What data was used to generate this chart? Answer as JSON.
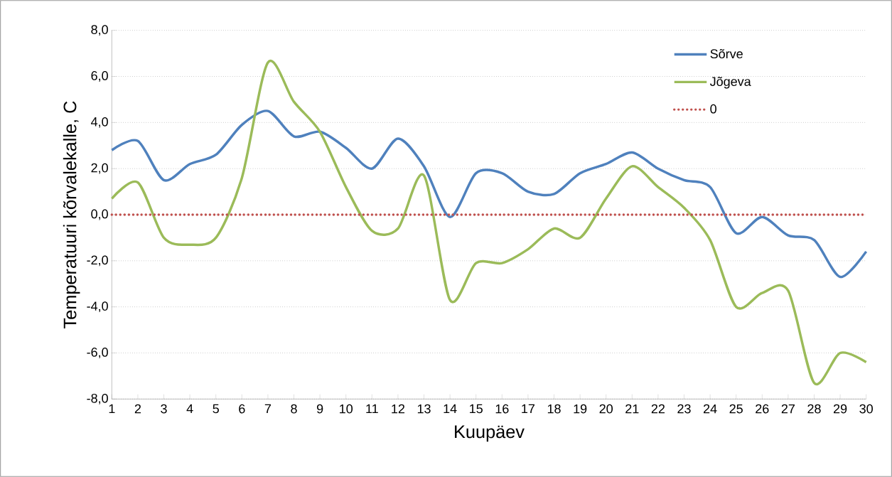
{
  "chart_data": {
    "type": "line",
    "xlabel": "Kuupäev",
    "ylabel": "Temperatuuri  kõrvalekalle, C",
    "categories": [
      "1",
      "2",
      "3",
      "4",
      "5",
      "6",
      "7",
      "8",
      "9",
      "10",
      "11",
      "12",
      "13",
      "14",
      "15",
      "16",
      "17",
      "18",
      "19",
      "20",
      "21",
      "22",
      "23",
      "24",
      "25",
      "26",
      "27",
      "28",
      "29",
      "30"
    ],
    "series": [
      {
        "name": "Sõrve",
        "color": "#4f81bd",
        "values": [
          2.8,
          3.2,
          1.5,
          2.2,
          2.6,
          3.9,
          4.5,
          3.4,
          3.6,
          2.9,
          2.0,
          3.3,
          2.1,
          -0.1,
          1.8,
          1.8,
          1.0,
          0.9,
          1.8,
          2.2,
          2.7,
          2.0,
          1.5,
          1.2,
          -0.8,
          -0.1,
          -0.9,
          -1.1,
          -2.7,
          -1.6
        ]
      },
      {
        "name": "Jõgeva",
        "color": "#9bbb59",
        "values": [
          0.7,
          1.4,
          -1.0,
          -1.3,
          -1.0,
          1.6,
          6.6,
          4.9,
          3.6,
          1.2,
          -0.7,
          -0.6,
          1.7,
          -3.7,
          -2.1,
          -2.1,
          -1.5,
          -0.6,
          -1.0,
          0.7,
          2.1,
          1.2,
          0.3,
          -1.1,
          -4.0,
          -3.4,
          -3.3,
          -7.3,
          -6.0,
          -6.4
        ]
      },
      {
        "name": "0",
        "color": "#c0504d",
        "line_style": "dotted",
        "values": [
          0,
          0,
          0,
          0,
          0,
          0,
          0,
          0,
          0,
          0,
          0,
          0,
          0,
          0,
          0,
          0,
          0,
          0,
          0,
          0,
          0,
          0,
          0,
          0,
          0,
          0,
          0,
          0,
          0,
          0
        ]
      }
    ],
    "ylim": [
      -8,
      8
    ],
    "yticks": [
      {
        "value": -8,
        "label": "-8,0"
      },
      {
        "value": -6,
        "label": "-6,0"
      },
      {
        "value": -4,
        "label": "-4,0"
      },
      {
        "value": -2,
        "label": "-2,0"
      },
      {
        "value": 0,
        "label": "0,0"
      },
      {
        "value": 2,
        "label": "2,0"
      },
      {
        "value": 4,
        "label": "4,0"
      },
      {
        "value": 6,
        "label": "6,0"
      },
      {
        "value": 8,
        "label": "8,0"
      }
    ],
    "grid": "y",
    "legend": "top right",
    "marker": "none",
    "line_style": "solid"
  }
}
